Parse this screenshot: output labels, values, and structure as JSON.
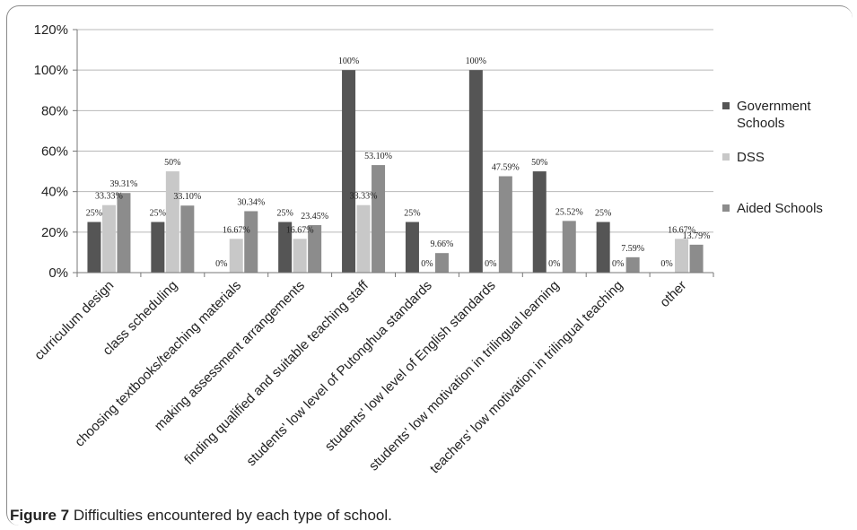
{
  "caption": {
    "label": "Figure 7",
    "text": " Difficulties encountered by each type of school."
  },
  "chart_data": {
    "type": "bar",
    "title": "",
    "xlabel": "",
    "ylabel": "",
    "ylim": [
      0,
      120
    ],
    "yticks": [
      0,
      20,
      40,
      60,
      80,
      100,
      120
    ],
    "ytick_labels": [
      "0%",
      "20%",
      "40%",
      "60%",
      "80%",
      "100%",
      "120%"
    ],
    "grid": true,
    "legend_position": "right",
    "categories": [
      "curriculum design",
      "class scheduling",
      "choosing textbooks/teaching materials",
      "making assessment arrangements",
      "finding qualified and suitable teaching staff",
      "students' low level of Putonghua standards",
      "students' low level of English standards",
      "students' low motivation in trilingual learning",
      "teachers' low motivation in trilingual teaching",
      "other"
    ],
    "series": [
      {
        "name": "Government Schools",
        "legend_lines": [
          "Government",
          "Schools"
        ],
        "color": "#555555",
        "values": [
          25,
          25,
          0,
          25,
          100,
          25,
          100,
          50,
          25,
          0
        ],
        "labels": [
          "25%",
          "25%",
          "0%",
          "25%",
          "100%",
          "25%",
          "100%",
          "50%",
          "25%",
          "0%"
        ]
      },
      {
        "name": "DSS",
        "legend_lines": [
          "DSS"
        ],
        "color": "#c8c8c8",
        "values": [
          33.33,
          50,
          16.67,
          16.67,
          33.33,
          0,
          0,
          0,
          0,
          16.67
        ],
        "labels": [
          "33.33%",
          "50%",
          "16.67%",
          "16.67%",
          "33.33%",
          "0%",
          "0%",
          "0%",
          "0%",
          "16.67%"
        ]
      },
      {
        "name": "Aided Schools",
        "legend_lines": [
          "Aided Schools"
        ],
        "color": "#8c8c8c",
        "values": [
          39.31,
          33.1,
          30.34,
          23.45,
          53.1,
          9.66,
          47.59,
          25.52,
          7.59,
          13.79
        ],
        "labels": [
          "39.31%",
          "33.10%",
          "30.34%",
          "23.45%",
          "53.10%",
          "9.66%",
          "47.59%",
          "25.52%",
          "7.59%",
          "13.79%"
        ]
      }
    ]
  }
}
